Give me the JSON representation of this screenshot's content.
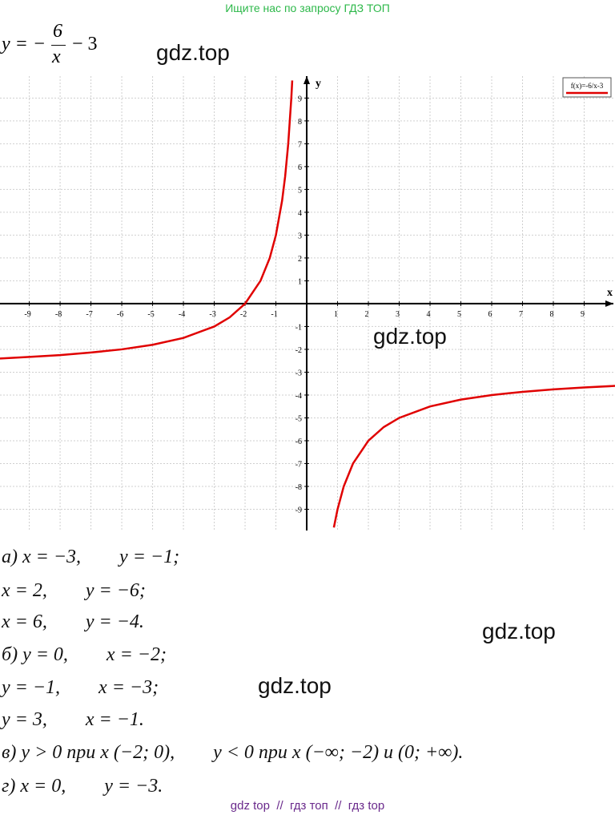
{
  "header": {
    "text": "Ищите нас по запросу ГДЗ ТОП"
  },
  "formula": {
    "lhs": "y = −",
    "numerator": "6",
    "denominator": "x",
    "rest": "− 3"
  },
  "watermarks": [
    "gdz.top",
    "gdz.top",
    "gdz.top",
    "gdz.top"
  ],
  "chart_data": {
    "type": "line",
    "xlabel": "x",
    "ylabel": "y",
    "x": [
      -9.95,
      -9,
      -8,
      -7,
      -6,
      -5,
      -4,
      -3,
      -2.5,
      -2,
      -1.5,
      -1.2,
      -1,
      -0.8,
      -0.7,
      -0.6,
      -0.5,
      -0.47,
      0,
      0.88,
      1,
      1.2,
      1.5,
      2,
      2.5,
      3,
      4,
      5,
      6,
      7,
      8,
      9,
      10
    ],
    "series": [
      {
        "name": "f(x)=-6/x-3",
        "color": "#e00000",
        "values": [
          -2.4,
          -2.33,
          -2.25,
          -2.14,
          -2,
          -1.8,
          -1.5,
          -1,
          -0.6,
          0,
          1,
          2,
          3,
          4.5,
          5.57,
          7,
          9,
          9.77,
          null,
          -9.8,
          -9,
          -8,
          -7,
          -6,
          -5.4,
          -5,
          -4.5,
          -4.2,
          -4,
          -3.86,
          -3.75,
          -3.67,
          -3.6
        ]
      }
    ],
    "xlim": [
      -9.95,
      10
    ],
    "ylim": [
      -9.93,
      9.96
    ],
    "xticks": [
      -9,
      -8,
      -7,
      -6,
      -5,
      -4,
      -3,
      -2,
      -1,
      1,
      2,
      3,
      4,
      5,
      6,
      7,
      8,
      9
    ],
    "yticks": [
      -9,
      -8,
      -7,
      -6,
      -5,
      -4,
      -3,
      -2,
      -1,
      1,
      2,
      3,
      4,
      5,
      6,
      7,
      8,
      9
    ],
    "grid": true,
    "legend": "upper right"
  },
  "answers": [
    "а) x = −3,        y = −1;",
    "x = 2,        y = −6;",
    "x = 6,        y = −4.",
    "б) y = 0,        x = −2;",
    "y = −1,        x = −3;",
    "y = 3,        x = −1.",
    "в) y > 0 при x (−2; 0),        y < 0 при x (−∞; −2) и (0; +∞).",
    "г) x = 0,        y = −3."
  ],
  "footer": {
    "text": "gdz top  //  гдз топ  //  гдз top"
  }
}
